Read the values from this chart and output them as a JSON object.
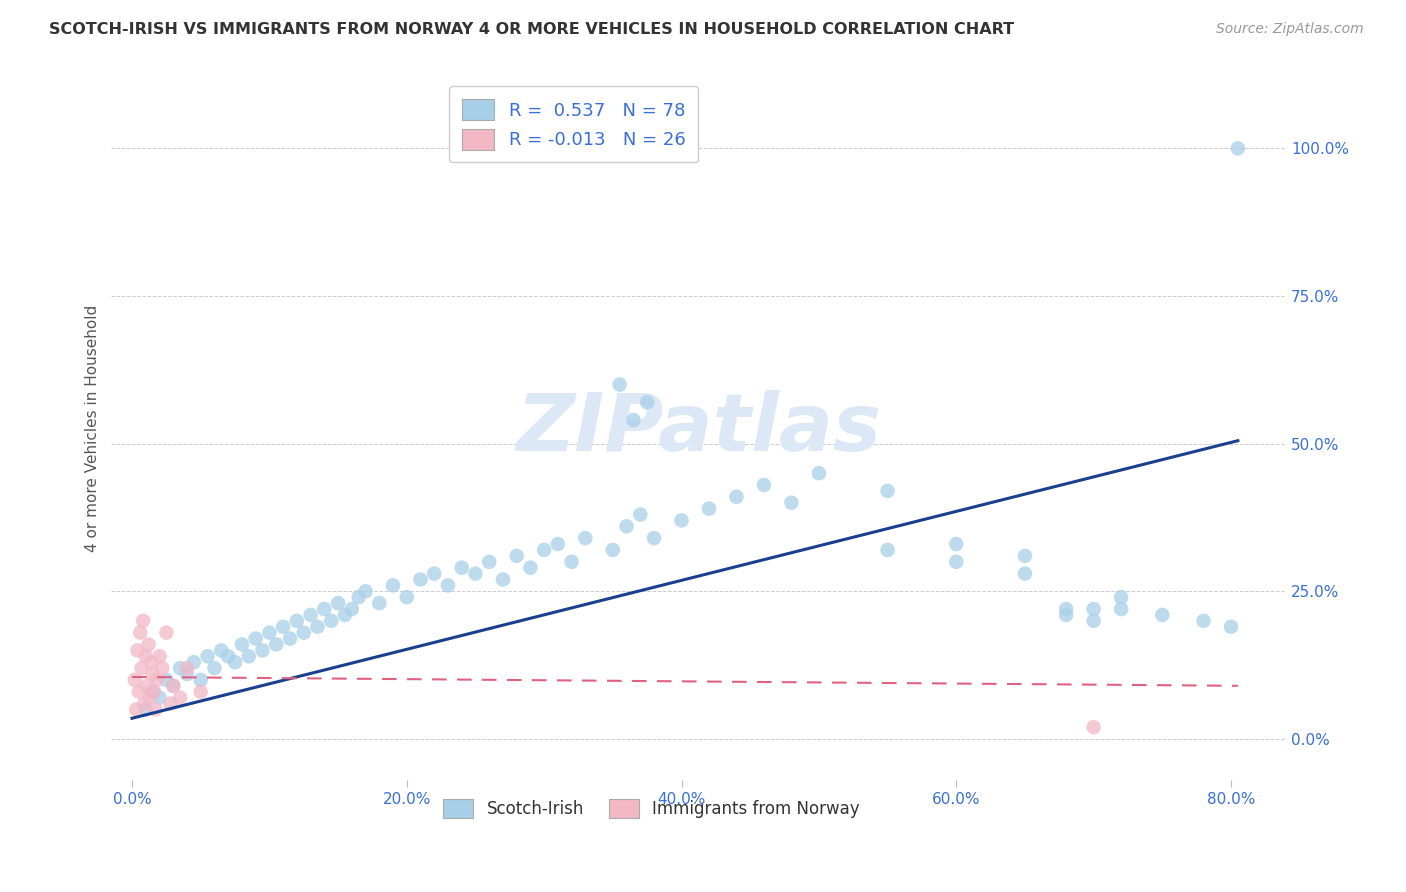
{
  "title": "SCOTCH-IRISH VS IMMIGRANTS FROM NORWAY 4 OR MORE VEHICLES IN HOUSEHOLD CORRELATION CHART",
  "source": "Source: ZipAtlas.com",
  "ylabel": "4 or more Vehicles in Household",
  "legend_label1": "Scotch-Irish",
  "legend_label2": "Immigrants from Norway",
  "R1": 0.537,
  "N1": 78,
  "R2": -0.013,
  "N2": 26,
  "color_blue": "#a8cfe8",
  "color_pink": "#f2b8c6",
  "line_blue": "#1a3f8f",
  "line_pink": "#e06080",
  "title_color": "#333333",
  "source_color": "#999999",
  "tick_color": "#3a6fd8",
  "watermark_color": "#dce8f5",
  "grid_color": "#cccccc",
  "background_color": "#ffffff",
  "blue_x": [
    1.0,
    1.5,
    2.0,
    2.5,
    3.0,
    3.5,
    4.0,
    4.5,
    5.0,
    5.5,
    6.0,
    6.5,
    7.0,
    7.5,
    8.0,
    8.5,
    9.0,
    9.5,
    10.0,
    10.5,
    11.0,
    11.5,
    12.0,
    12.5,
    13.0,
    13.5,
    14.0,
    14.5,
    15.0,
    15.5,
    16.0,
    16.5,
    17.0,
    18.0,
    19.0,
    20.0,
    21.0,
    22.0,
    23.0,
    24.0,
    25.0,
    26.0,
    27.0,
    28.0,
    29.0,
    30.0,
    31.0,
    32.0,
    33.0,
    35.0,
    36.0,
    37.0,
    38.0,
    40.0,
    42.0,
    44.0,
    46.0,
    48.0,
    50.0,
    55.0,
    60.0,
    65.0,
    68.0,
    70.0,
    72.0,
    75.0,
    78.0,
    80.0,
    35.5,
    37.5,
    36.5,
    55.0,
    60.0,
    65.0,
    68.0,
    70.0,
    72.0,
    80.5
  ],
  "blue_y": [
    5.0,
    8.0,
    7.0,
    10.0,
    9.0,
    12.0,
    11.0,
    13.0,
    10.0,
    14.0,
    12.0,
    15.0,
    14.0,
    13.0,
    16.0,
    14.0,
    17.0,
    15.0,
    18.0,
    16.0,
    19.0,
    17.0,
    20.0,
    18.0,
    21.0,
    19.0,
    22.0,
    20.0,
    23.0,
    21.0,
    22.0,
    24.0,
    25.0,
    23.0,
    26.0,
    24.0,
    27.0,
    28.0,
    26.0,
    29.0,
    28.0,
    30.0,
    27.0,
    31.0,
    29.0,
    32.0,
    33.0,
    30.0,
    34.0,
    32.0,
    36.0,
    38.0,
    34.0,
    37.0,
    39.0,
    41.0,
    43.0,
    40.0,
    45.0,
    42.0,
    33.0,
    31.0,
    22.0,
    20.0,
    22.0,
    21.0,
    20.0,
    19.0,
    60.0,
    57.0,
    54.0,
    32.0,
    30.0,
    28.0,
    21.0,
    22.0,
    24.0,
    100.0
  ],
  "pink_x": [
    0.2,
    0.3,
    0.4,
    0.5,
    0.6,
    0.7,
    0.8,
    0.9,
    1.0,
    1.1,
    1.2,
    1.3,
    1.4,
    1.5,
    1.6,
    1.7,
    1.8,
    2.0,
    2.2,
    2.5,
    2.8,
    3.0,
    3.5,
    4.0,
    5.0,
    70.0
  ],
  "pink_y": [
    10.0,
    5.0,
    15.0,
    8.0,
    18.0,
    12.0,
    20.0,
    6.0,
    14.0,
    9.0,
    16.0,
    7.0,
    13.0,
    11.0,
    8.0,
    5.0,
    10.0,
    14.0,
    12.0,
    18.0,
    6.0,
    9.0,
    7.0,
    12.0,
    8.0,
    2.0
  ],
  "blue_line_x": [
    0.0,
    80.5
  ],
  "blue_line_y": [
    3.5,
    50.5
  ],
  "pink_line_x": [
    0.0,
    80.5
  ],
  "pink_line_y": [
    10.5,
    9.0
  ],
  "xlim": [
    -1.5,
    84
  ],
  "ylim": [
    -7,
    112
  ],
  "xticks": [
    0,
    20,
    40,
    60,
    80
  ],
  "yticks": [
    0,
    25,
    50,
    75,
    100
  ]
}
